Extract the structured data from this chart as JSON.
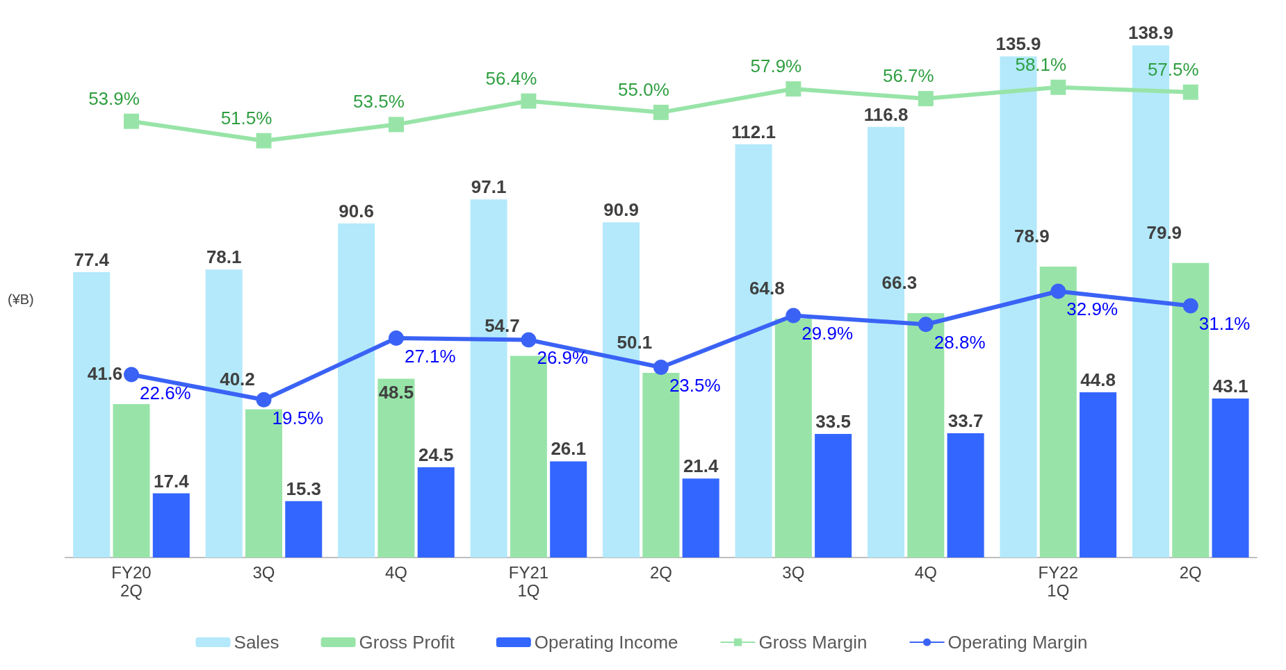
{
  "chart_data": {
    "type": "bar",
    "ylabel": "(¥B)",
    "categories": [
      "FY20\n2Q",
      "3Q",
      "4Q",
      "FY21\n1Q",
      "2Q",
      "3Q",
      "4Q",
      "FY22\n1Q",
      "2Q"
    ],
    "series": [
      {
        "name": "Sales",
        "color": "#b3e9fb",
        "values": [
          77.4,
          78.1,
          90.6,
          97.1,
          90.9,
          112.1,
          116.8,
          135.9,
          138.9
        ]
      },
      {
        "name": "Gross Profit",
        "color": "#98e4a8",
        "values": [
          41.6,
          40.2,
          48.5,
          54.7,
          50.1,
          64.8,
          66.3,
          78.9,
          79.9
        ]
      },
      {
        "name": "Operating Income",
        "color": "#3366ff",
        "values": [
          17.4,
          15.3,
          24.5,
          26.1,
          21.4,
          33.5,
          33.7,
          44.8,
          43.1
        ]
      },
      {
        "name": "Gross Margin",
        "type": "line",
        "axis": "y2",
        "marker": "square",
        "color": "#98e4a8",
        "values": [
          53.9,
          51.5,
          53.5,
          56.4,
          55.0,
          57.9,
          56.7,
          58.1,
          57.5
        ],
        "value_labels": [
          "53.9%",
          "51.5%",
          "53.5%",
          "56.4%",
          "55.0%",
          "57.9%",
          "56.7%",
          "58.1%",
          "57.5%"
        ]
      },
      {
        "name": "Operating Margin",
        "type": "line",
        "axis": "y2",
        "marker": "circle",
        "color": "#3a62f5",
        "values": [
          22.6,
          19.5,
          27.1,
          26.9,
          23.5,
          29.9,
          28.8,
          32.9,
          31.1
        ],
        "value_labels": [
          "22.6%",
          "19.5%",
          "27.1%",
          "26.9%",
          "23.5%",
          "29.9%",
          "28.8%",
          "32.9%",
          "31.1%"
        ]
      }
    ],
    "tick_labels": "x",
    "data_labels": true,
    "grid": false,
    "legend": "bottom"
  }
}
